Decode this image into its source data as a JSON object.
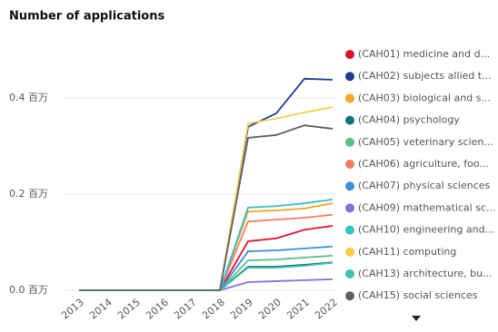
{
  "chart_data": {
    "type": "line",
    "title": "Number of applications",
    "categories": [
      "2013",
      "2014",
      "2015",
      "2016",
      "2017",
      "2018",
      "2019",
      "2020",
      "2021",
      "2022"
    ],
    "ylim": [
      0,
      0.5
    ],
    "yticks": [
      {
        "value": 0,
        "label": "0.0 百万"
      },
      {
        "value": 0.2,
        "label": "0.2 百万"
      },
      {
        "value": 0.4,
        "label": "0.4 百万"
      }
    ],
    "grid": true,
    "series": [
      {
        "name": "(CAH01) medicine and d...",
        "color": "#e0102f",
        "values": [
          0,
          0,
          0,
          0,
          0,
          0,
          0.102,
          0.108,
          0.126,
          0.134
        ]
      },
      {
        "name": "(CAH02) subjects allied t...",
        "color": "#1f3a8f",
        "values": [
          0,
          0,
          0,
          0,
          0,
          0,
          0.34,
          0.368,
          0.44,
          0.438
        ]
      },
      {
        "name": "(CAH03) biological and s...",
        "color": "#f5a623",
        "values": [
          0,
          0,
          0,
          0,
          0,
          0,
          0.164,
          0.166,
          0.17,
          0.181
        ]
      },
      {
        "name": "(CAH04) psychology",
        "color": "#13727a",
        "values": [
          0,
          0,
          0,
          0,
          0,
          0,
          0.049,
          0.049,
          0.053,
          0.058
        ]
      },
      {
        "name": "(CAH05) veterinary scien...",
        "color": "#5fc08a",
        "values": [
          0,
          0,
          0,
          0,
          0,
          0,
          0.062,
          0.064,
          0.068,
          0.072
        ]
      },
      {
        "name": "(CAH06) agriculture, foo...",
        "color": "#f27a64",
        "values": [
          0,
          0,
          0,
          0,
          0,
          0,
          0.143,
          0.147,
          0.151,
          0.157
        ]
      },
      {
        "name": "(CAH07) physical sciences",
        "color": "#3a8fd9",
        "values": [
          0,
          0,
          0,
          0,
          0,
          0,
          0.081,
          0.083,
          0.087,
          0.091
        ]
      },
      {
        "name": "(CAH09) mathematical sc...",
        "color": "#8a70d6",
        "values": [
          0,
          0,
          0,
          0,
          0,
          0,
          0.017,
          0.019,
          0.021,
          0.023
        ]
      },
      {
        "name": "(CAH10) engineering and...",
        "color": "#36bfc9",
        "values": [
          0,
          0,
          0,
          0,
          0,
          0,
          0.172,
          0.175,
          0.181,
          0.189
        ]
      },
      {
        "name": "(CAH11) computing",
        "color": "#f3cf4e",
        "values": [
          0,
          0,
          0,
          0,
          0,
          0,
          0.347,
          0.357,
          0.37,
          0.381
        ]
      },
      {
        "name": "(CAH13) architecture, bu...",
        "color": "#3cc4a8",
        "values": [
          0,
          0,
          0,
          0,
          0,
          0,
          0.047,
          0.047,
          0.051,
          0.057
        ]
      },
      {
        "name": "(CAH15) social sciences",
        "color": "#5c6166",
        "values": [
          0,
          0,
          0,
          0,
          0,
          0,
          0.317,
          0.323,
          0.343,
          0.336
        ]
      }
    ]
  }
}
